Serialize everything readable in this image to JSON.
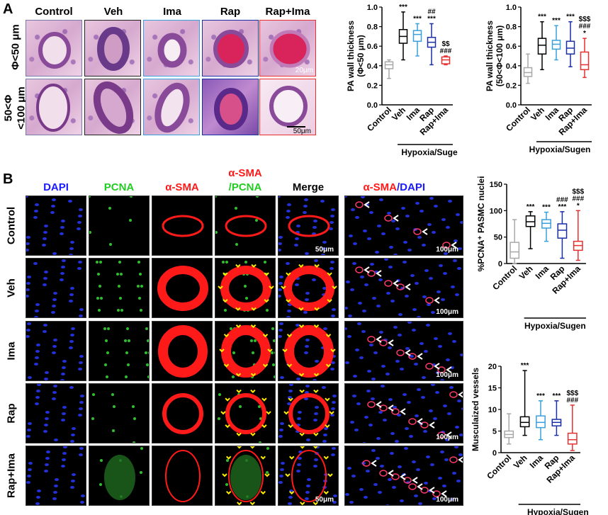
{
  "panelA": {
    "letter": "A",
    "columns": [
      "Control",
      "Veh",
      "Ima",
      "Rap",
      "Rap+Ima"
    ],
    "rows": [
      "Φ<50 μm",
      "50<Φ\n<100 μm"
    ],
    "row1_line1": "Φ<50 μm",
    "row2_line1": "50<Φ",
    "row2_line2": "<100 μm",
    "scale_top": "20μm",
    "scale_bottom": "50μm"
  },
  "panelB": {
    "letter": "B",
    "columns": [
      "DAPI",
      "PCNA",
      "α-SMA",
      "α-SMA",
      "/PCNA",
      "Merge",
      "α-SMA",
      "/DAPI"
    ],
    "col_dapi": "DAPI",
    "col_pcna": "PCNA",
    "col_asma": "α-SMA",
    "col_asma_pcna_1": "α-SMA",
    "col_asma_pcna_2": "/PCNA",
    "col_merge": "Merge",
    "col_asma_dapi_1": "α-SMA",
    "col_asma_dapi_2": "/DAPI",
    "rows": [
      "Control",
      "Veh",
      "Ima",
      "Rap",
      "Rap+Ima"
    ],
    "scale_50": "50μm",
    "scale_100": "100μm"
  },
  "colors": {
    "Control": "#a8a8a8",
    "Veh": "#000000",
    "Ima": "#3aa0dc",
    "Rap": "#1a2ea6",
    "Rap+Ima": "#e63030",
    "dapi_label": "#1a1aff",
    "pcna_label": "#22cc22",
    "asma_label": "#ff1a1a"
  },
  "chart_data": [
    {
      "type": "box",
      "ylabel_line1": "PA wall thickness",
      "ylabel_line2": "(Φ<50 μm)",
      "categories": [
        "Control",
        "Veh",
        "Ima",
        "Rap",
        "Rap+Ima"
      ],
      "group_label": "Hypoxia/Suge",
      "ylim": [
        0,
        1.0
      ],
      "yticks": [
        "0.0",
        "0.2",
        "0.4",
        "0.6",
        "0.8",
        "1.0"
      ],
      "boxes": [
        {
          "min": 0.27,
          "q1": 0.37,
          "median": 0.41,
          "q3": 0.44,
          "max": 0.46
        },
        {
          "min": 0.46,
          "q1": 0.63,
          "median": 0.7,
          "q3": 0.77,
          "max": 0.95
        },
        {
          "min": 0.5,
          "q1": 0.65,
          "median": 0.72,
          "q3": 0.76,
          "max": 0.83
        },
        {
          "min": 0.41,
          "q1": 0.59,
          "median": 0.64,
          "q3": 0.69,
          "max": 0.83
        },
        {
          "min": 0.41,
          "q1": 0.42,
          "median": 0.46,
          "q3": 0.49,
          "max": 0.5
        }
      ],
      "annotations": [
        [],
        [
          "***"
        ],
        [
          "***"
        ],
        [
          "##",
          "***"
        ],
        [
          "$$",
          "###"
        ]
      ]
    },
    {
      "type": "box",
      "ylabel_line1": "PA wall thickness",
      "ylabel_line2": "(50<Φ<100 μm)",
      "categories": [
        "Control",
        "Veh",
        "Ima",
        "Rap",
        "Rap+Ima"
      ],
      "group_label": "Hypoxia/Sugen",
      "ylim": [
        0,
        1.0
      ],
      "yticks": [
        "0.0",
        "0.2",
        "0.4",
        "0.6",
        "0.8",
        "1.0"
      ],
      "boxes": [
        {
          "min": 0.22,
          "q1": 0.29,
          "median": 0.33,
          "q3": 0.38,
          "max": 0.52
        },
        {
          "min": 0.36,
          "q1": 0.52,
          "median": 0.61,
          "q3": 0.68,
          "max": 0.85
        },
        {
          "min": 0.46,
          "q1": 0.57,
          "median": 0.62,
          "q3": 0.66,
          "max": 0.81
        },
        {
          "min": 0.39,
          "q1": 0.52,
          "median": 0.58,
          "q3": 0.65,
          "max": 0.85
        },
        {
          "min": 0.28,
          "q1": 0.36,
          "median": 0.41,
          "q3": 0.54,
          "max": 0.68
        }
      ],
      "annotations": [
        [],
        [
          "***"
        ],
        [
          "***"
        ],
        [
          "***"
        ],
        [
          "$$$",
          "###",
          "*"
        ]
      ]
    },
    {
      "type": "box",
      "ylabel": "%PCNA⁺ PASMC nuclei",
      "categories": [
        "Control",
        "Veh",
        "Ima",
        "Rap",
        "Rap+Ima"
      ],
      "group_label": "Hypoxia/Sugen",
      "ylim": [
        0,
        150
      ],
      "yticks": [
        "0",
        "50",
        "100",
        "150"
      ],
      "boxes": [
        {
          "min": 0,
          "q1": 10,
          "median": 22,
          "q3": 40,
          "max": 83
        },
        {
          "min": 28,
          "q1": 70,
          "median": 79,
          "q3": 90,
          "max": 98
        },
        {
          "min": 42,
          "q1": 67,
          "median": 76,
          "q3": 83,
          "max": 97
        },
        {
          "min": 10,
          "q1": 48,
          "median": 63,
          "q3": 75,
          "max": 98
        },
        {
          "min": 6,
          "q1": 25,
          "median": 34,
          "q3": 42,
          "max": 100
        }
      ],
      "annotations": [
        [],
        [
          "***"
        ],
        [
          "***"
        ],
        [
          "###",
          "***"
        ],
        [
          "$$$",
          "###",
          "*"
        ]
      ]
    },
    {
      "type": "box",
      "ylabel": "Musculaized vessels",
      "categories": [
        "Control",
        "Veh",
        "Ima",
        "Rap",
        "Rap+Ima"
      ],
      "group_label": "Hypoxia/Sugen",
      "ylim": [
        0,
        20
      ],
      "yticks": [
        "0",
        "5",
        "10",
        "15",
        "20"
      ],
      "boxes": [
        {
          "min": 2,
          "q1": 3.5,
          "median": 4.2,
          "q3": 5,
          "max": 9
        },
        {
          "min": 4,
          "q1": 6,
          "median": 7,
          "q3": 8.3,
          "max": 19
        },
        {
          "min": 3,
          "q1": 5.8,
          "median": 7,
          "q3": 8.5,
          "max": 12
        },
        {
          "min": 4,
          "q1": 6.2,
          "median": 7,
          "q3": 7.7,
          "max": 12
        },
        {
          "min": 0.5,
          "q1": 2,
          "median": 3,
          "q3": 4.5,
          "max": 11
        }
      ],
      "annotations": [
        [],
        [
          "***"
        ],
        [
          "***"
        ],
        [
          "***"
        ],
        [
          "$$$",
          "###"
        ]
      ]
    }
  ]
}
